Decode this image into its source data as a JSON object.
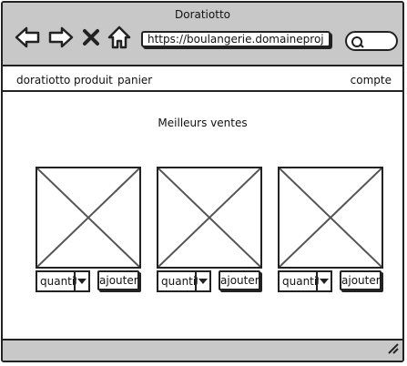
{
  "window": {
    "title": "Doratiotto"
  },
  "toolbar": {
    "back_icon": "left-arrow-icon",
    "forward_icon": "right-arrow-icon",
    "stop_icon": "close-x-icon",
    "home_icon": "home-icon",
    "search_icon": "search-icon"
  },
  "address_bar": {
    "url": "https://boulangerie.domaineproj"
  },
  "menu": {
    "items": [
      {
        "label": "doratiotto"
      },
      {
        "label": "produit"
      },
      {
        "label": "panier"
      }
    ],
    "account": "compte"
  },
  "content": {
    "heading": "Meilleurs ventes"
  },
  "products": [
    {
      "image_icon": "image-placeholder-icon",
      "quantity_label": "quantité",
      "add_label": "ajouter"
    },
    {
      "image_icon": "image-placeholder-icon",
      "quantity_label": "quantité",
      "add_label": "ajouter"
    },
    {
      "image_icon": "image-placeholder-icon",
      "quantity_label": "quantité",
      "add_label": "ajouter"
    }
  ],
  "colors": {
    "chrome": "#c8c8c8",
    "stroke": "#222222",
    "placeholder_lines": "#555555",
    "background": "#ffffff"
  }
}
